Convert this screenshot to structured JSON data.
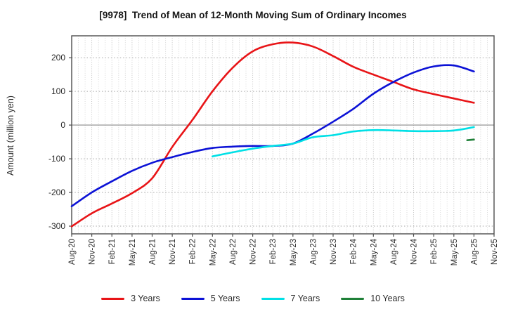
{
  "header": {
    "title": "[9978]  Trend of Mean of 12-Month Moving Sum of Ordinary Incomes"
  },
  "chart_data": {
    "type": "line",
    "title": "[9978]  Trend of Mean of 12-Month Moving Sum of Ordinary Incomes",
    "xlabel": "",
    "ylabel": "Amount (million yen)",
    "x_tick_labels": [
      "Aug-20",
      "Nov-20",
      "Feb-21",
      "May-21",
      "Aug-21",
      "Nov-21",
      "Feb-22",
      "May-22",
      "Aug-22",
      "Nov-22",
      "Feb-23",
      "May-23",
      "Aug-23",
      "Nov-23",
      "Feb-24",
      "May-24",
      "Aug-24",
      "Nov-24",
      "Feb-25",
      "May-25",
      "Aug-25",
      "Nov-25"
    ],
    "months_per_tick": 3,
    "total_months": 63,
    "y_ticks": [
      200,
      100,
      0,
      -100,
      -200,
      -300
    ],
    "ylim": [
      -323,
      265
    ],
    "grid": "dotted",
    "legend_position": "bottom-center",
    "series": [
      {
        "name": "3 Years",
        "color": "#e81417",
        "start_month": 0,
        "step_months": 3,
        "values": [
          -301,
          -262,
          -233,
          -202,
          -158,
          -65,
          15,
          100,
          170,
          219,
          240,
          245,
          233,
          205,
          173,
          150,
          128,
          106,
          92,
          79,
          66
        ]
      },
      {
        "name": "5 Years",
        "color": "#0c12d6",
        "start_month": 0,
        "step_months": 3,
        "values": [
          -241,
          -200,
          -167,
          -136,
          -112,
          -95,
          -80,
          -68,
          -64,
          -62,
          -62,
          -55,
          -25,
          10,
          48,
          93,
          128,
          156,
          174,
          177,
          159
        ]
      },
      {
        "name": "7 Years",
        "color": "#00e0e6",
        "start_month": 21,
        "step_months": 3,
        "values": [
          -93,
          -81,
          -70,
          -62,
          -55,
          -36,
          -30,
          -19,
          -15,
          -16,
          -18,
          -18,
          -16,
          -6
        ]
      },
      {
        "name": "10 Years",
        "color": "#1f8038",
        "start_month": 59,
        "step_months": 1,
        "values": [
          -45,
          -43
        ]
      }
    ]
  },
  "style": {
    "frame_color": "#4d4d4d",
    "grid_minor_color": "#d4d4d4",
    "grid_major_x_color": "#bdbdbd",
    "grid_major_y_color": "#a6a6a6",
    "zero_line_color": "#8a8a8a",
    "tick_label_color": "#2b2b2b"
  }
}
